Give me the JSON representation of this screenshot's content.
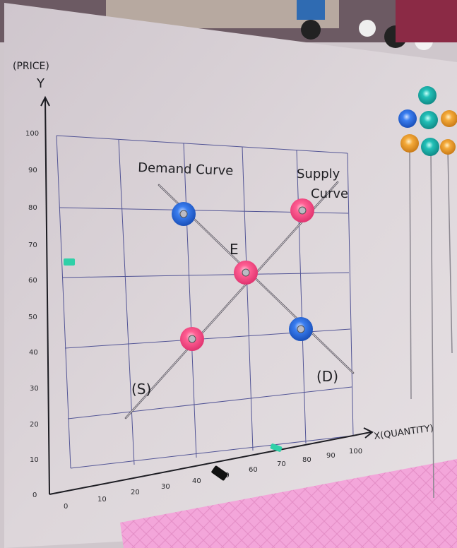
{
  "board": {
    "y_axis_title": "(PRICE)",
    "y_axis_letter": "Y",
    "x_axis_title": "X(QUANTITY)",
    "y_ticks": [
      "100",
      "90",
      "80",
      "70",
      "60",
      "50",
      "40",
      "30",
      "20",
      "10",
      "0"
    ],
    "x_ticks": [
      "0",
      "10",
      "20",
      "30",
      "40",
      "50",
      "60",
      "70",
      "80",
      "90",
      "100"
    ]
  },
  "labels": {
    "demand_curve": "Demand Curve",
    "supply_line1": "Supply",
    "supply_line2": "Curve",
    "equilibrium": "E",
    "supply_short": "(S)",
    "demand_short": "(D)"
  },
  "magnets": {
    "demand_color": "blue",
    "supply_color": "pink",
    "equilibrium_color": "pink",
    "shelf_colors": [
      "teal",
      "blue",
      "teal",
      "orange",
      "orange",
      "teal",
      "orange"
    ]
  },
  "colors": {
    "board": "#d8d0d4",
    "grid": "#3b3f8a",
    "pink_magnet": "#ff4f86",
    "blue_magnet": "#2f6fe0",
    "teal_magnet": "#1fb7b2",
    "orange_magnet": "#f0a030",
    "mat": "#f4a8dc"
  }
}
